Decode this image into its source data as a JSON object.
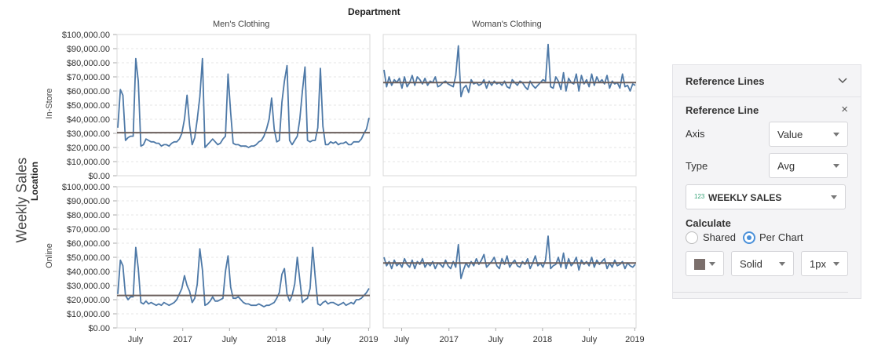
{
  "chart": {
    "title": "Department",
    "y_title": "Weekly Sales",
    "row_title": "Location",
    "columns": [
      "Men's Clothing",
      "Woman's Clothing"
    ],
    "rows": [
      "In-Store",
      "Online"
    ],
    "y_ticks": [
      "$100,000.00",
      "$90,000.00",
      "$80,000.00",
      "$70,000.00",
      "$60,000.00",
      "$50,000.00",
      "$40,000.00",
      "$30,000.00",
      "$20,000.00",
      "$10,000.00",
      "$0.00"
    ],
    "x_ticks": [
      "July",
      "2017",
      "July",
      "2018",
      "July",
      "2019"
    ],
    "line_color": "#4e79a7",
    "ref_line_color": "#6b5f5c"
  },
  "chart_data": {
    "type": "line",
    "facets": [
      {
        "column": "Men's Clothing",
        "row": "In-Store",
        "ylim": [
          0,
          100000
        ],
        "reference_avg": 30500,
        "values": [
          34000,
          61000,
          57000,
          25000,
          27000,
          28000,
          28000,
          83000,
          67000,
          21000,
          22000,
          26000,
          25000,
          24000,
          24000,
          23000,
          23000,
          21000,
          22000,
          22000,
          21000,
          23000,
          24000,
          24000,
          26000,
          30000,
          40000,
          57000,
          36000,
          22000,
          27000,
          40000,
          56000,
          83000,
          20000,
          22000,
          24000,
          26000,
          24000,
          22000,
          23000,
          26000,
          28000,
          72000,
          45000,
          23000,
          22000,
          22000,
          21000,
          21000,
          21000,
          20000,
          21000,
          21000,
          22000,
          24000,
          25000,
          28000,
          33000,
          40000,
          55000,
          33000,
          24000,
          25000,
          52000,
          67000,
          78000,
          25000,
          22000,
          25000,
          28000,
          40000,
          60000,
          77000,
          25000,
          24000,
          25000,
          25000,
          34000,
          76000,
          35000,
          22000,
          22000,
          24000,
          23000,
          24000,
          22000,
          23000,
          23000,
          24000,
          22000,
          22000,
          24000,
          24000,
          24000,
          26000,
          30000,
          33000,
          41000
        ]
      },
      {
        "column": "Woman's Clothing",
        "row": "In-Store",
        "ylim": [
          0,
          100000
        ],
        "reference_avg": 66000,
        "values": [
          75000,
          63000,
          70000,
          64000,
          68000,
          66000,
          69000,
          62000,
          70000,
          63000,
          66000,
          71000,
          64000,
          70000,
          68000,
          65000,
          69000,
          64000,
          67000,
          66000,
          70000,
          63000,
          64000,
          66000,
          67000,
          65000,
          64000,
          63000,
          71000,
          92000,
          56000,
          62000,
          64000,
          59000,
          68000,
          65000,
          66000,
          64000,
          65000,
          68000,
          62000,
          67000,
          64000,
          67000,
          65000,
          66000,
          64000,
          67000,
          63000,
          62000,
          68000,
          66000,
          64000,
          67000,
          66000,
          63000,
          61000,
          67000,
          64000,
          62000,
          64000,
          66000,
          68000,
          67000,
          93000,
          63000,
          62000,
          70000,
          67000,
          61000,
          73000,
          60000,
          69000,
          66000,
          65000,
          72000,
          60000,
          71000,
          65000,
          68000,
          63000,
          72000,
          64000,
          70000,
          66000,
          68000,
          65000,
          71000,
          62000,
          67000,
          65000,
          66000,
          62000,
          72000,
          63000,
          64000,
          60000,
          65000,
          64000
        ]
      },
      {
        "column": "Men's Clothing",
        "row": "Online",
        "ylim": [
          0,
          100000
        ],
        "reference_avg": 23000,
        "values": [
          24000,
          48000,
          44000,
          23000,
          20000,
          22000,
          22000,
          57000,
          42000,
          18000,
          17000,
          19000,
          17000,
          18000,
          17000,
          16000,
          17000,
          16000,
          18000,
          17000,
          16000,
          17000,
          18000,
          20000,
          24000,
          28000,
          37000,
          30000,
          26000,
          18000,
          21000,
          31000,
          56000,
          41000,
          16000,
          17000,
          19000,
          22000,
          19000,
          19000,
          20000,
          21000,
          40000,
          51000,
          29000,
          21000,
          21000,
          22000,
          20000,
          18000,
          17000,
          17000,
          16000,
          16000,
          16000,
          17000,
          16000,
          15000,
          16000,
          16000,
          17000,
          18000,
          21000,
          25000,
          38000,
          42000,
          24000,
          19000,
          23000,
          31000,
          50000,
          34000,
          18000,
          20000,
          21000,
          28000,
          57000,
          36000,
          17000,
          16000,
          18000,
          19000,
          17000,
          18000,
          18000,
          17000,
          16000,
          17000,
          18000,
          16000,
          17000,
          18000,
          17000,
          20000,
          20000,
          21000,
          23000,
          25000,
          28000
        ]
      },
      {
        "column": "Woman's Clothing",
        "row": "Online",
        "ylim": [
          0,
          100000
        ],
        "reference_avg": 46000,
        "values": [
          50000,
          44000,
          47000,
          42000,
          48000,
          44000,
          46000,
          43000,
          49000,
          45000,
          43000,
          48000,
          42000,
          47000,
          45000,
          49000,
          43000,
          46000,
          44000,
          47000,
          42000,
          46000,
          45000,
          43000,
          48000,
          44000,
          42000,
          47000,
          43000,
          59000,
          35000,
          41000,
          46000,
          43000,
          47000,
          44000,
          49000,
          45000,
          48000,
          52000,
          43000,
          45000,
          47000,
          50000,
          44000,
          42000,
          49000,
          45000,
          51000,
          43000,
          46000,
          48000,
          44000,
          43000,
          47000,
          45000,
          49000,
          42000,
          46000,
          51000,
          44000,
          46000,
          43000,
          48000,
          65000,
          42000,
          44000,
          45000,
          50000,
          43000,
          53000,
          42000,
          49000,
          44000,
          46000,
          50000,
          41000,
          48000,
          45000,
          47000,
          44000,
          50000,
          43000,
          48000,
          45000,
          47000,
          49000,
          42000,
          46000,
          43000,
          48000,
          44000,
          45000,
          47000,
          42000,
          46000,
          44000,
          43000,
          45000
        ]
      }
    ]
  },
  "panel": {
    "header": "Reference Lines",
    "section": "Reference Line",
    "close": "×",
    "axis_label": "Axis",
    "axis_value": "Value",
    "type_label": "Type",
    "type_value": "Avg",
    "field_type_badge": "123",
    "field_value": "WEEKLY SALES",
    "calculate_label": "Calculate",
    "radio_shared": "Shared",
    "radio_per_chart": "Per Chart",
    "selected_radio": "Per Chart",
    "swatch_color": "#7b6f6c",
    "style_value": "Solid",
    "width_value": "1px"
  }
}
